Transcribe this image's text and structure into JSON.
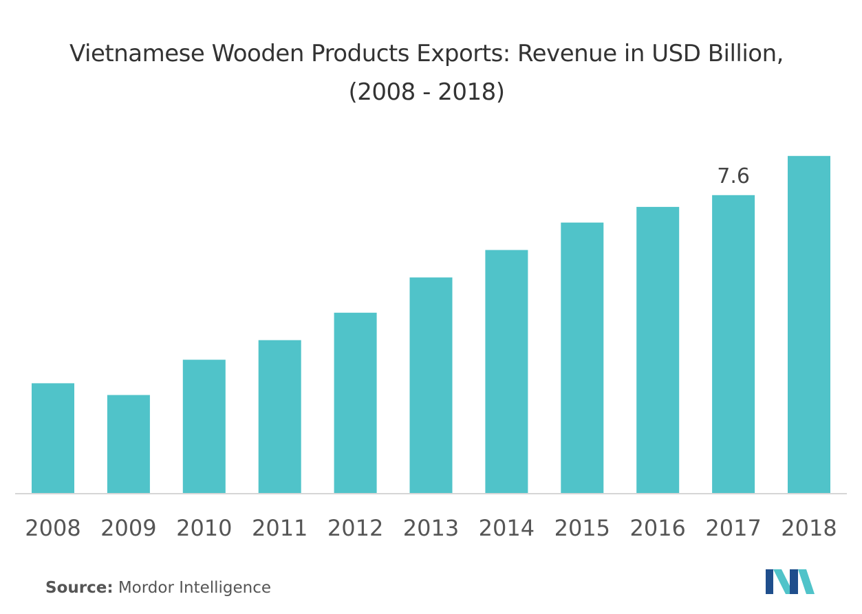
{
  "chart_data": {
    "type": "bar",
    "title": "Vietnamese Wooden Products Exports: Revenue in USD Billion, (2008 - 2018)",
    "categories": [
      "2008",
      "2009",
      "2010",
      "2011",
      "2012",
      "2013",
      "2014",
      "2015",
      "2016",
      "2017",
      "2018"
    ],
    "values": [
      2.8,
      2.5,
      3.4,
      3.9,
      4.6,
      5.5,
      6.2,
      6.9,
      7.3,
      7.6,
      8.6
    ],
    "data_labels": [
      {
        "category": "2017",
        "text": "7.6"
      }
    ],
    "xlabel": "",
    "ylabel": "",
    "ylim": [
      0,
      9
    ],
    "grid": false,
    "legend": "none",
    "bar_color": "#50c3c9"
  },
  "source": {
    "label": "Source:",
    "text": "Mordor Intelligence"
  },
  "logo": {
    "name": "mordor-intelligence-logo",
    "colors": [
      "#1f4e8c",
      "#50c3c9"
    ]
  }
}
